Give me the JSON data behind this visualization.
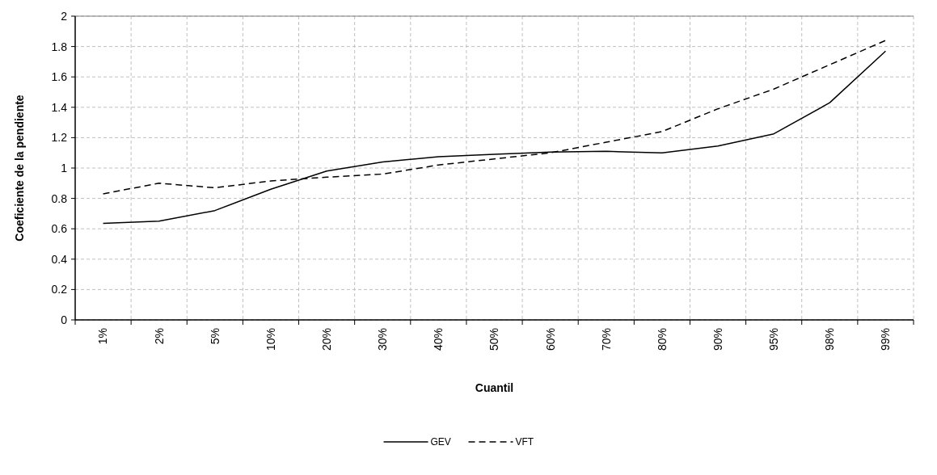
{
  "chart_data": {
    "type": "line",
    "xlabel": "Cuantil",
    "ylabel": "Coeficiente de la pendiente",
    "categories": [
      "1%",
      "2%",
      "5%",
      "10%",
      "20%",
      "30%",
      "40%",
      "50%",
      "60%",
      "70%",
      "80%",
      "90%",
      "95%",
      "98%",
      "99%"
    ],
    "series": [
      {
        "name": "GEV",
        "color": "#000000",
        "line_style": "solid",
        "values": [
          0.635,
          0.65,
          0.72,
          0.86,
          0.98,
          1.04,
          1.075,
          1.09,
          1.105,
          1.11,
          1.1,
          1.145,
          1.225,
          1.43,
          1.77
        ]
      },
      {
        "name": "VFT",
        "color": "#000000",
        "line_style": "dashed",
        "values": [
          0.83,
          0.9,
          0.87,
          0.915,
          0.94,
          0.96,
          1.02,
          1.06,
          1.1,
          1.17,
          1.24,
          1.39,
          1.52,
          1.68,
          1.84
        ]
      }
    ],
    "ylim": [
      0,
      2
    ],
    "yticks": [
      0,
      0.2,
      0.4,
      0.6,
      0.8,
      1,
      1.2,
      1.4,
      1.6,
      1.8,
      2
    ],
    "grid": true,
    "legend": "bottom"
  }
}
